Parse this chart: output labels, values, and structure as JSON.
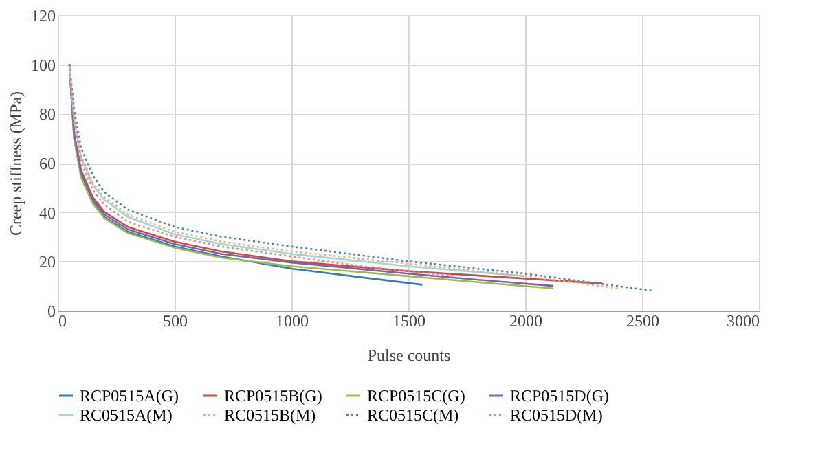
{
  "chart_data": {
    "type": "line",
    "xlabel": "Pulse counts",
    "ylabel": "Creep stiffness (MPa)",
    "xlim": [
      0,
      3000
    ],
    "xticks": [
      0,
      500,
      1000,
      1500,
      2000,
      2500,
      3000
    ],
    "ylim": [
      0,
      120
    ],
    "yticks": [
      0,
      20,
      40,
      60,
      80,
      100,
      120
    ],
    "grid": true,
    "legend": "bottom",
    "marker": "none",
    "series": [
      {
        "name": "RCP0515A(G)",
        "color": "#3a78b8",
        "line_style": "solid",
        "x": [
          50,
          70,
          100,
          150,
          200,
          300,
          500,
          700,
          1000,
          1300,
          1560
        ],
        "values": [
          100,
          70,
          55,
          44,
          38,
          32,
          26,
          22,
          17,
          13.5,
          10.5
        ]
      },
      {
        "name": "RCP0515B(G)",
        "color": "#c0504d",
        "line_style": "solid",
        "x": [
          50,
          70,
          100,
          150,
          200,
          300,
          500,
          700,
          1000,
          1500,
          2000,
          2330
        ],
        "values": [
          100,
          72,
          57,
          46,
          40,
          34,
          28,
          24,
          20,
          16,
          13,
          11
        ]
      },
      {
        "name": "RCP0515C(G)",
        "color": "#9bbb59",
        "line_style": "solid",
        "x": [
          50,
          70,
          100,
          150,
          200,
          300,
          500,
          700,
          1000,
          1500,
          1800,
          2120
        ],
        "values": [
          100,
          70,
          54,
          43.5,
          37.5,
          31.5,
          25.5,
          21.5,
          18,
          14,
          11.5,
          9
        ]
      },
      {
        "name": "RCP0515D(G)",
        "color": "#8064a2",
        "line_style": "solid",
        "x": [
          50,
          70,
          100,
          150,
          200,
          300,
          500,
          700,
          1000,
          1500,
          1800,
          2120
        ],
        "values": [
          100,
          72,
          56,
          45,
          39,
          33,
          27,
          23,
          19.5,
          15,
          12.5,
          10
        ]
      },
      {
        "name": "RC0515A(M)",
        "color": "#9fd8d0",
        "line_style": "solid",
        "x": [
          50,
          70,
          100,
          150,
          200,
          300,
          500,
          700,
          1000,
          1500,
          2000
        ],
        "values": [
          100,
          78,
          62,
          51,
          45,
          38,
          31,
          27,
          23,
          18,
          14
        ]
      },
      {
        "name": "RC0515B(M)",
        "color": "#f7a978",
        "line_style": "dotted",
        "x": [
          50,
          70,
          100,
          150,
          200,
          300,
          500,
          700,
          1000,
          1500,
          2000,
          2400
        ],
        "values": [
          100,
          78,
          63,
          52,
          46,
          39,
          32,
          28,
          24,
          19,
          14,
          9
        ]
      },
      {
        "name": "RC0515C(M)",
        "color": "#4a7fc0",
        "line_style": "dotted",
        "x": [
          50,
          70,
          100,
          150,
          200,
          300,
          500,
          700,
          1000,
          1500,
          2000,
          2550
        ],
        "values": [
          100,
          82,
          66,
          55,
          48,
          41,
          34,
          30,
          26,
          20,
          15,
          8
        ]
      },
      {
        "name": "RC0515D(M)",
        "color": "#f08080",
        "line_style": "dotted",
        "x": [
          50,
          70,
          100,
          150,
          200,
          300,
          500,
          700,
          1000,
          1300,
          1700
        ],
        "values": [
          100,
          76,
          60,
          49,
          43,
          36,
          30,
          26,
          22,
          18,
          14
        ]
      }
    ]
  }
}
